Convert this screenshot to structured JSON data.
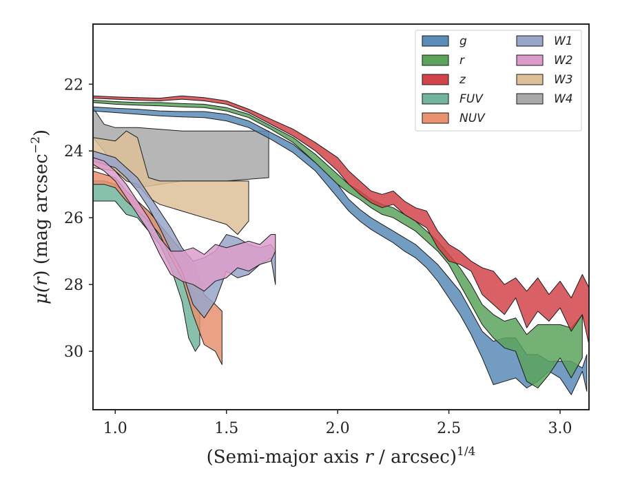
{
  "chart_data": {
    "type": "area",
    "xlabel": "(Semi-major axis r / arcsec)",
    "xlabel_parts": {
      "pre": "(Semi-major axis ",
      "var": "r",
      "post": " / arcsec)",
      "sup": "1/4"
    },
    "ylabel": "μ(r) (mag arcsec−2)",
    "ylabel_parts": {
      "pre": "μ(",
      "var": "r",
      "post": ") (mag arcsec",
      "sup": "−2",
      "tail": ")"
    },
    "xlim": [
      0.9,
      3.13
    ],
    "ylim": [
      31.75,
      20.2
    ],
    "y_inverted": true,
    "xticks": [
      1.0,
      1.5,
      2.0,
      2.5,
      3.0
    ],
    "xtick_labels": [
      "1.0",
      "1.5",
      "2.0",
      "2.5",
      "3.0"
    ],
    "yticks": [
      22,
      24,
      26,
      28,
      30
    ],
    "ytick_labels": [
      "22",
      "24",
      "26",
      "28",
      "30"
    ],
    "grid": false,
    "legend_placement": "top-right",
    "legend_columns": 2,
    "series": [
      {
        "name": "W4",
        "color": "#a9a9a9",
        "x": [
          0.9,
          0.95,
          1.0,
          1.1,
          1.3,
          1.5,
          1.69
        ],
        "lo": [
          22.7,
          23.2,
          23.3,
          23.3,
          23.4,
          23.4,
          23.4
        ],
        "hi": [
          23.6,
          24.0,
          24.6,
          25.1,
          24.9,
          24.9,
          24.8
        ]
      },
      {
        "name": "W3",
        "color": "#ddbf98",
        "x": [
          0.9,
          1.0,
          1.05,
          1.1,
          1.15,
          1.2,
          1.3,
          1.4,
          1.5,
          1.55,
          1.6
        ],
        "lo": [
          23.6,
          23.7,
          23.4,
          23.6,
          24.8,
          24.9,
          24.9,
          24.9,
          24.9,
          24.9,
          24.9
        ],
        "hi": [
          24.5,
          24.6,
          24.9,
          25.0,
          25.4,
          25.6,
          25.8,
          26.0,
          26.2,
          26.5,
          26.1
        ]
      },
      {
        "name": "FUV",
        "color": "#72b59c",
        "x": [
          0.9,
          0.95,
          1.0,
          1.05,
          1.1,
          1.15,
          1.2,
          1.25,
          1.3,
          1.33,
          1.36,
          1.38
        ],
        "lo": [
          24.9,
          24.9,
          25.0,
          25.3,
          25.6,
          25.8,
          26.2,
          26.8,
          27.5,
          28.0,
          28.4,
          28.8
        ],
        "hi": [
          25.5,
          25.5,
          25.5,
          25.9,
          26.0,
          26.4,
          26.8,
          27.5,
          28.5,
          29.6,
          30.0,
          29.8
        ]
      },
      {
        "name": "NUV",
        "color": "#e8926f",
        "x": [
          0.9,
          0.95,
          1.0,
          1.05,
          1.1,
          1.15,
          1.2,
          1.25,
          1.3,
          1.35,
          1.4,
          1.45,
          1.48
        ],
        "lo": [
          24.6,
          24.7,
          24.8,
          25.2,
          25.5,
          25.8,
          26.2,
          26.6,
          27.0,
          27.3,
          28.3,
          28.6,
          28.8
        ],
        "hi": [
          25.0,
          25.0,
          25.1,
          25.5,
          25.8,
          26.1,
          26.5,
          27.2,
          27.8,
          28.9,
          29.8,
          30.0,
          30.4
        ]
      },
      {
        "name": "W1",
        "color": "#98a6c9",
        "x": [
          0.9,
          0.95,
          1.0,
          1.05,
          1.1,
          1.15,
          1.2,
          1.25,
          1.3,
          1.35,
          1.4,
          1.45,
          1.5,
          1.55,
          1.6,
          1.65,
          1.7,
          1.72
        ],
        "lo": [
          24.0,
          24.1,
          24.2,
          24.5,
          24.8,
          25.3,
          25.8,
          26.3,
          26.9,
          27.3,
          27.2,
          27.0,
          26.5,
          26.6,
          26.8,
          26.9,
          26.8,
          27.0
        ],
        "hi": [
          24.3,
          24.4,
          24.5,
          24.8,
          25.2,
          25.7,
          26.3,
          27.0,
          27.6,
          28.6,
          29.0,
          28.5,
          27.6,
          27.8,
          27.7,
          27.4,
          27.2,
          28.0
        ]
      },
      {
        "name": "W2",
        "color": "#dc9ccb",
        "x": [
          0.9,
          0.95,
          1.0,
          1.05,
          1.1,
          1.15,
          1.2,
          1.25,
          1.3,
          1.35,
          1.4,
          1.45,
          1.5,
          1.55,
          1.6,
          1.65,
          1.7,
          1.72
        ],
        "lo": [
          24.2,
          24.3,
          24.6,
          25.0,
          25.5,
          26.0,
          26.6,
          27.0,
          27.0,
          26.9,
          27.1,
          26.8,
          26.9,
          26.8,
          26.7,
          26.8,
          26.5,
          26.5
        ],
        "hi": [
          24.4,
          24.6,
          24.9,
          25.4,
          25.9,
          26.4,
          27.1,
          27.7,
          27.9,
          28.0,
          28.2,
          27.9,
          27.8,
          27.5,
          27.6,
          27.4,
          27.3,
          27.0
        ]
      },
      {
        "name": "g",
        "color": "#5b8bb7",
        "x": [
          0.9,
          1.0,
          1.1,
          1.2,
          1.3,
          1.4,
          1.5,
          1.6,
          1.7,
          1.8,
          1.9,
          2.0,
          2.05,
          2.1,
          2.15,
          2.2,
          2.25,
          2.3,
          2.35,
          2.4,
          2.45,
          2.5,
          2.55,
          2.6,
          2.65,
          2.7,
          2.75,
          2.8,
          2.85,
          2.9,
          2.95,
          3.0,
          3.05,
          3.1,
          3.12
        ],
        "lo": [
          22.68,
          22.72,
          22.75,
          22.8,
          22.82,
          22.82,
          22.9,
          23.1,
          23.45,
          23.8,
          24.35,
          25.0,
          25.45,
          25.75,
          26.0,
          26.2,
          26.4,
          26.6,
          26.8,
          27.1,
          27.4,
          27.8,
          28.2,
          28.8,
          29.4,
          29.7,
          29.6,
          29.6,
          30.1,
          30.1,
          30.3,
          30.3,
          30.3,
          30.5,
          30.1
        ],
        "hi": [
          22.8,
          22.85,
          22.9,
          22.95,
          22.98,
          23.0,
          23.1,
          23.3,
          23.65,
          24.05,
          24.6,
          25.4,
          25.8,
          26.1,
          26.35,
          26.55,
          26.75,
          27.0,
          27.2,
          27.5,
          27.9,
          28.4,
          28.9,
          29.5,
          30.2,
          31.0,
          30.9,
          30.8,
          31.1,
          30.9,
          30.6,
          30.8,
          31.3,
          30.6,
          31.2
        ]
      },
      {
        "name": "r",
        "color": "#5ca35c",
        "x": [
          0.9,
          1.0,
          1.1,
          1.2,
          1.3,
          1.4,
          1.5,
          1.6,
          1.7,
          1.8,
          1.9,
          2.0,
          2.05,
          2.1,
          2.15,
          2.2,
          2.25,
          2.3,
          2.35,
          2.4,
          2.45,
          2.5,
          2.55,
          2.6,
          2.65,
          2.7,
          2.75,
          2.8,
          2.85,
          2.9,
          2.95,
          3.0,
          3.05,
          3.1
        ],
        "lo": [
          22.48,
          22.52,
          22.55,
          22.55,
          22.58,
          22.6,
          22.7,
          22.9,
          23.25,
          23.6,
          24.1,
          24.7,
          25.0,
          25.2,
          25.45,
          25.6,
          25.7,
          25.9,
          26.1,
          26.4,
          26.7,
          27.1,
          27.5,
          28.0,
          28.6,
          28.9,
          29.1,
          29.0,
          29.5,
          29.2,
          29.2,
          29.2,
          29.3,
          28.9
        ],
        "hi": [
          22.55,
          22.6,
          22.63,
          22.65,
          22.68,
          22.7,
          22.8,
          23.0,
          23.35,
          23.75,
          24.35,
          25.0,
          25.25,
          25.45,
          25.7,
          25.9,
          26.0,
          26.2,
          26.4,
          26.7,
          27.0,
          27.4,
          28.0,
          28.6,
          29.2,
          29.6,
          29.9,
          30.0,
          30.9,
          31.1,
          30.7,
          30.2,
          30.8,
          30.2
        ]
      },
      {
        "name": "z",
        "color": "#d2444a",
        "x": [
          0.9,
          1.0,
          1.1,
          1.2,
          1.3,
          1.4,
          1.5,
          1.6,
          1.7,
          1.8,
          1.9,
          2.0,
          2.05,
          2.1,
          2.15,
          2.2,
          2.25,
          2.3,
          2.35,
          2.4,
          2.45,
          2.5,
          2.55,
          2.6,
          2.65,
          2.7,
          2.75,
          2.8,
          2.85,
          2.9,
          2.95,
          3.0,
          3.05,
          3.1,
          3.13
        ],
        "lo": [
          22.35,
          22.38,
          22.4,
          22.42,
          22.35,
          22.4,
          22.5,
          22.75,
          23.05,
          23.35,
          23.75,
          24.2,
          24.6,
          24.9,
          25.2,
          25.3,
          25.2,
          25.5,
          25.7,
          25.8,
          26.4,
          26.8,
          27.0,
          27.3,
          27.5,
          27.6,
          28.0,
          27.8,
          28.2,
          27.8,
          28.3,
          27.9,
          28.4,
          27.7,
          28.1
        ],
        "hi": [
          22.42,
          22.45,
          22.48,
          22.5,
          22.45,
          22.5,
          22.6,
          22.85,
          23.2,
          23.55,
          24.0,
          24.6,
          25.0,
          25.3,
          25.55,
          25.7,
          25.6,
          25.9,
          26.1,
          26.3,
          26.9,
          27.3,
          27.4,
          27.6,
          28.3,
          28.6,
          28.9,
          28.4,
          29.3,
          28.8,
          29.1,
          28.7,
          29.4,
          28.9,
          29.8
        ]
      }
    ],
    "legend": [
      {
        "name": "g",
        "color": "#5b8bb7"
      },
      {
        "name": "r",
        "color": "#5ca35c"
      },
      {
        "name": "z",
        "color": "#d2444a"
      },
      {
        "name": "FUV",
        "color": "#72b59c"
      },
      {
        "name": "NUV",
        "color": "#e8926f"
      },
      {
        "name": "W1",
        "color": "#98a6c9"
      },
      {
        "name": "W2",
        "color": "#dc9ccb"
      },
      {
        "name": "W3",
        "color": "#ddbf98"
      },
      {
        "name": "W4",
        "color": "#a9a9a9"
      }
    ]
  }
}
